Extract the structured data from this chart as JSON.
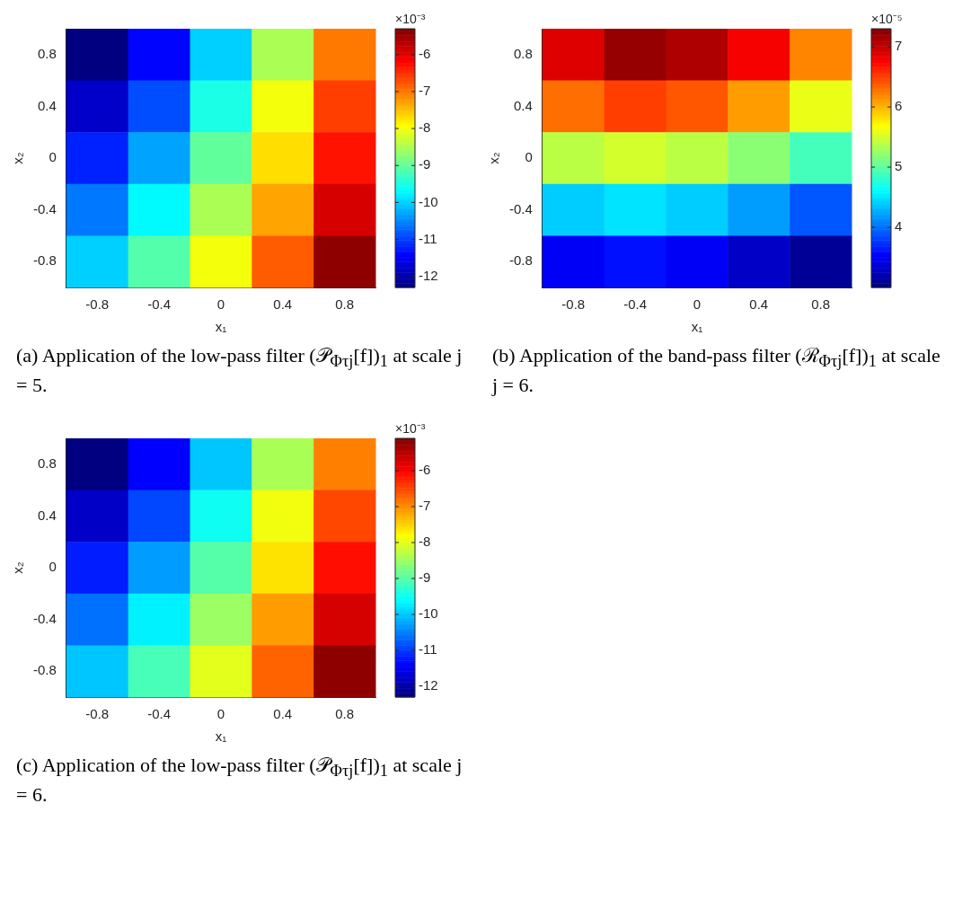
{
  "chart_data": [
    {
      "type": "heatmap",
      "title": "(a) Application of the low-pass filter (𝒫$_{Φτj}$[f])$_{1}$ at scale j = 5.",
      "xlabel": "x₁",
      "ylabel": "x₂",
      "clabel": "×10⁻³",
      "categories": [
        "-0.8",
        "-0.4",
        "0",
        "0.4",
        "0.8"
      ],
      "y_categories": [
        "0.8",
        "0.4",
        "0",
        "-0.4",
        "-0.8"
      ],
      "cells": [
        [
          -12.3,
          -11.4,
          -10.0,
          -8.5,
          -7.0
        ],
        [
          -11.8,
          -10.9,
          -9.5,
          -8.0,
          -6.6
        ],
        [
          -11.2,
          -10.3,
          -9.0,
          -7.7,
          -6.3
        ],
        [
          -10.6,
          -9.7,
          -8.5,
          -7.3,
          -5.9
        ],
        [
          -10.0,
          -9.1,
          -8.0,
          -6.8,
          -5.4
        ]
      ],
      "clim": [
        -12.3,
        -5.3
      ],
      "cticks": [
        -12,
        -11,
        -10,
        -9,
        -8,
        -7,
        -6
      ]
    },
    {
      "type": "heatmap",
      "title": "(b) Application of the band-pass filter (ℛ$_{Φτj}$[f])$_{1}$ at scale j = 6.",
      "xlabel": "x₁",
      "ylabel": "x₂",
      "clabel": "×10⁻⁵",
      "categories": [
        "-0.8",
        "-0.4",
        "0",
        "0.4",
        "0.8"
      ],
      "y_categories": [
        "0.8",
        "0.4",
        "0",
        "-0.4",
        "-0.8"
      ],
      "cells": [
        [
          6.9,
          7.2,
          7.1,
          6.8,
          6.2
        ],
        [
          6.3,
          6.5,
          6.4,
          6.1,
          5.6
        ],
        [
          5.4,
          5.5,
          5.4,
          5.2,
          4.9
        ],
        [
          4.4,
          4.5,
          4.4,
          4.2,
          3.9
        ],
        [
          3.5,
          3.6,
          3.5,
          3.3,
          3.1
        ]
      ],
      "clim": [
        3.0,
        7.3
      ],
      "cticks": [
        4,
        5,
        6,
        7
      ]
    },
    {
      "type": "heatmap",
      "title": "(c) Application of the low-pass filter (𝒫$_{Φτj}$[f])$_{1}$ at scale j = 6.",
      "xlabel": "x₁",
      "ylabel": "x₂",
      "clabel": "×10⁻³",
      "categories": [
        "-0.8",
        "-0.4",
        "0",
        "0.4",
        "0.8"
      ],
      "y_categories": [
        "0.8",
        "0.4",
        "0",
        "-0.4",
        "-0.8"
      ],
      "cells": [
        [
          -12.3,
          -11.4,
          -10.0,
          -8.4,
          -6.9
        ],
        [
          -11.8,
          -10.9,
          -9.5,
          -7.9,
          -6.5
        ],
        [
          -11.2,
          -10.3,
          -9.0,
          -7.6,
          -6.1
        ],
        [
          -10.6,
          -9.7,
          -8.5,
          -7.1,
          -5.7
        ],
        [
          -10.0,
          -9.1,
          -8.0,
          -6.7,
          -5.2
        ]
      ],
      "clim": [
        -12.3,
        -5.1
      ],
      "cticks": [
        -12,
        -11,
        -10,
        -9,
        -8,
        -7,
        -6
      ]
    }
  ]
}
